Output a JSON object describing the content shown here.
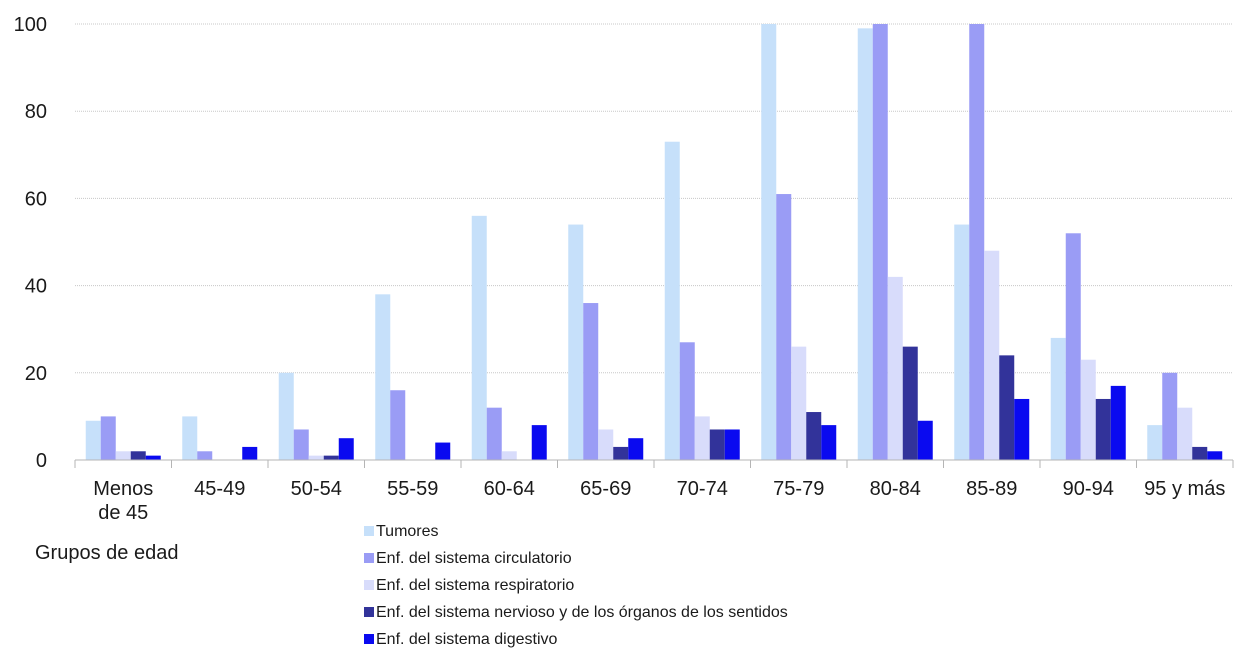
{
  "chart_data": {
    "type": "bar",
    "title": "",
    "xlabel": "Grupos de edad",
    "ylabel": "",
    "ylim": [
      0,
      100
    ],
    "yticks": [
      0,
      20,
      40,
      60,
      80,
      100
    ],
    "grid": true,
    "legend_position": "bottom-center",
    "categories": [
      [
        "Menos",
        "de 45"
      ],
      [
        "45-49"
      ],
      [
        "50-54"
      ],
      [
        "55-59"
      ],
      [
        "60-64"
      ],
      [
        "65-69"
      ],
      [
        "70-74"
      ],
      [
        "75-79"
      ],
      [
        "80-84"
      ],
      [
        "85-89"
      ],
      [
        "90-94"
      ],
      [
        "95 y más"
      ]
    ],
    "series": [
      {
        "name": "Tumores",
        "color": "#c6e0fa",
        "values": [
          9,
          10,
          20,
          38,
          56,
          54,
          73,
          100,
          99,
          54,
          28,
          8
        ]
      },
      {
        "name": "Enf. del sistema circulatorio",
        "color": "#9a9cf5",
        "values": [
          10,
          2,
          7,
          16,
          12,
          36,
          27,
          61,
          100,
          100,
          52,
          20
        ]
      },
      {
        "name": "Enf. del sistema respiratorio",
        "color": "#d8dcfb",
        "values": [
          2,
          0,
          1,
          0,
          2,
          7,
          10,
          26,
          42,
          48,
          23,
          12
        ]
      },
      {
        "name": "Enf. del sistema nervioso y de los órganos de los sentidos",
        "color": "#32339a",
        "values": [
          2,
          0,
          1,
          0,
          0,
          3,
          7,
          11,
          26,
          24,
          14,
          3
        ]
      },
      {
        "name": "Enf. del sistema digestivo",
        "color": "#0a0af0",
        "values": [
          1,
          3,
          5,
          4,
          8,
          5,
          7,
          8,
          9,
          14,
          17,
          2
        ]
      }
    ]
  }
}
